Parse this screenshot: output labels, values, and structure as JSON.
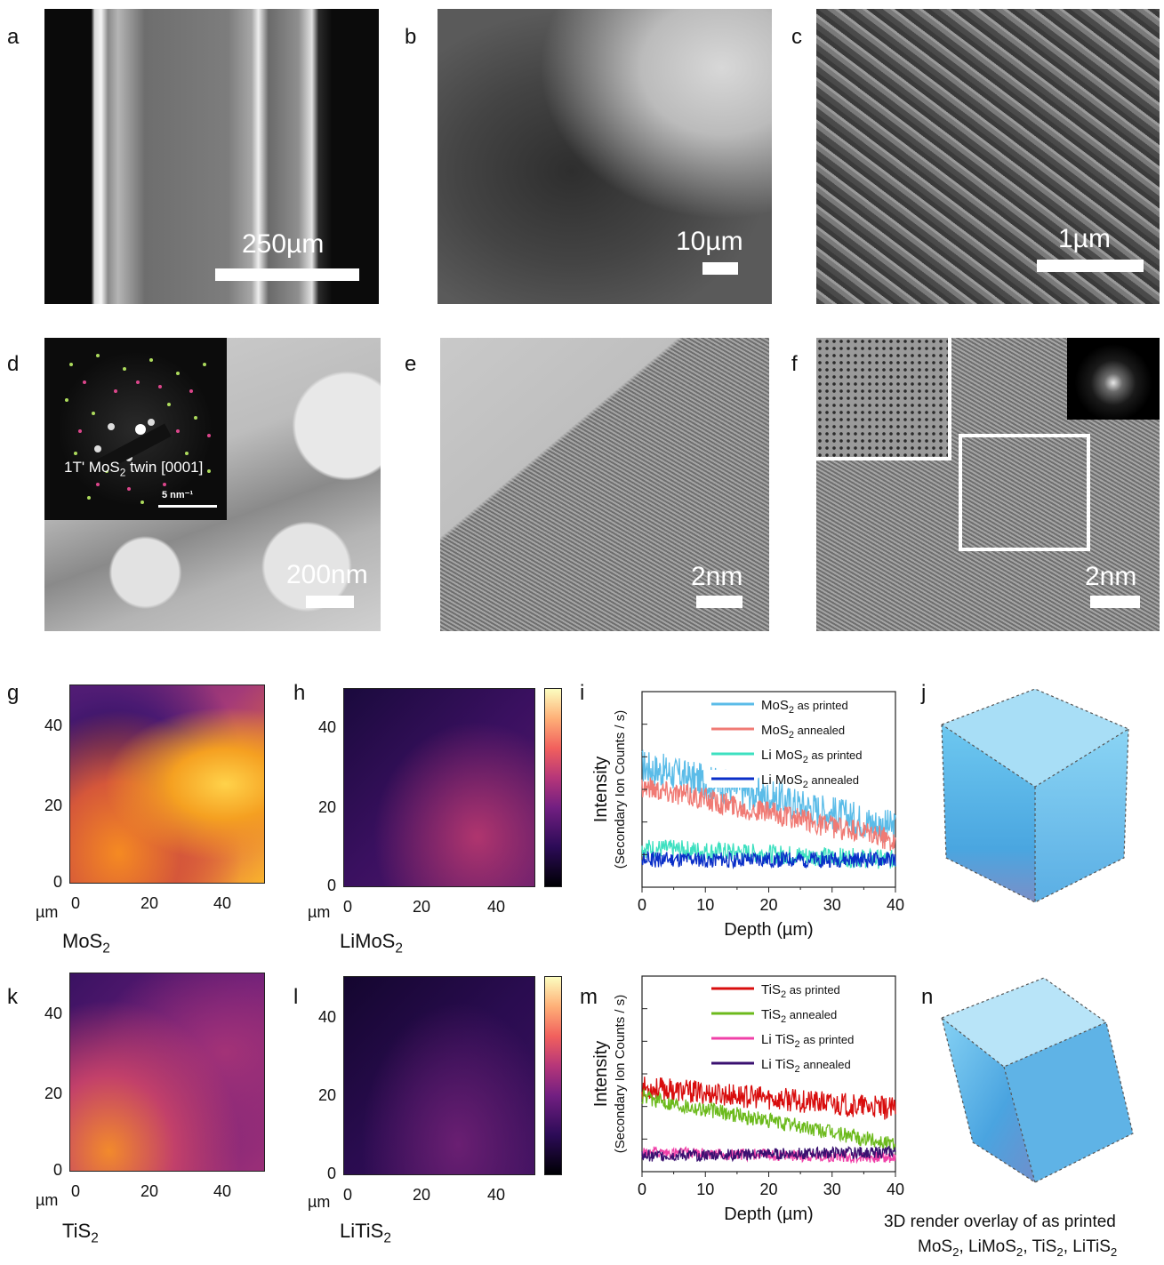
{
  "panels": {
    "a": {
      "label": "a",
      "scale": "250µm"
    },
    "b": {
      "label": "b",
      "scale": "10µm"
    },
    "c": {
      "label": "c",
      "scale": "1µm"
    },
    "d": {
      "label": "d",
      "scale": "200nm",
      "inset_text": "1T' MoS",
      "inset_sub": "2",
      "inset_text2": " twin [0001]",
      "inset_scale": "5 nm⁻¹"
    },
    "e": {
      "label": "e",
      "scale": "2nm"
    },
    "f": {
      "label": "f",
      "scale": "2nm"
    },
    "g": {
      "label": "g",
      "name": "MoS",
      "sub": "2"
    },
    "h": {
      "label": "h",
      "name": "LiMoS",
      "sub": "2"
    },
    "i": {
      "label": "i"
    },
    "j": {
      "label": "j"
    },
    "k": {
      "label": "k",
      "name": "TiS",
      "sub": "2"
    },
    "l": {
      "label": "l",
      "name": "LiTiS",
      "sub": "2"
    },
    "m": {
      "label": "m"
    },
    "n": {
      "label": "n"
    }
  },
  "map_axes": {
    "unit": "µm",
    "ticks": [
      "0",
      "20",
      "40"
    ]
  },
  "caption": {
    "line1": "3D render overlay of as printed",
    "line2_parts": [
      "MoS",
      "2",
      ", LiMoS",
      "2",
      ", TiS",
      "2",
      ", LiTiS",
      "2"
    ]
  },
  "chart_data": [
    {
      "type": "line",
      "panel": "i",
      "xlabel": "Depth (µm)",
      "ylabel": "Intensity",
      "ylabel2": "(Secondary Ion Counts / s)",
      "xlim": [
        0,
        40
      ],
      "xticks": [
        0,
        10,
        20,
        30,
        40
      ],
      "series": [
        {
          "name": "MoS2 as printed",
          "label_main": "MoS",
          "label_sub": "2",
          "label_tail": " as printed",
          "color": "#5bbce8",
          "start": 0.62,
          "end": 0.3,
          "noise": 0.09
        },
        {
          "name": "MoS2 annealed",
          "label_main": "MoS",
          "label_sub": "2",
          "label_tail": " annealed",
          "color": "#f07a74",
          "start": 0.52,
          "end": 0.24,
          "noise": 0.06
        },
        {
          "name": "Li MoS2 as printed",
          "label_main": "Li MoS",
          "label_sub": "2",
          "label_tail": " as printed",
          "color": "#3de0c0",
          "start": 0.2,
          "end": 0.14,
          "noise": 0.05
        },
        {
          "name": "Li MoS2 annealed",
          "label_main": "Li MoS",
          "label_sub": "2",
          "label_tail": " annealed",
          "color": "#0a2fc8",
          "start": 0.14,
          "end": 0.14,
          "noise": 0.04
        }
      ]
    },
    {
      "type": "line",
      "panel": "m",
      "xlabel": "Depth (µm)",
      "ylabel": "Intensity",
      "ylabel2": "(Secondary Ion Counts / s)",
      "xlim": [
        0,
        40
      ],
      "xticks": [
        0,
        10,
        20,
        30,
        40
      ],
      "series": [
        {
          "name": "TiS2 as printed",
          "label_main": "TiS",
          "label_sub": "2",
          "label_tail": " as printed",
          "color": "#d80d0d",
          "start": 0.43,
          "end": 0.32,
          "noise": 0.06
        },
        {
          "name": "TiS2 annealed",
          "label_main": "TiS",
          "label_sub": "2",
          "label_tail": " annealed",
          "color": "#6cba1c",
          "start": 0.38,
          "end": 0.14,
          "noise": 0.04
        },
        {
          "name": "Li TiS2 as printed",
          "label_main": "Li TiS",
          "label_sub": "2",
          "label_tail": " as printed",
          "color": "#f040a8",
          "start": 0.1,
          "end": 0.07,
          "noise": 0.03
        },
        {
          "name": "Li TiS2 annealed",
          "label_main": "Li TiS",
          "label_sub": "2",
          "label_tail": " annealed",
          "color": "#3a1070",
          "start": 0.08,
          "end": 0.1,
          "noise": 0.03
        }
      ]
    }
  ]
}
